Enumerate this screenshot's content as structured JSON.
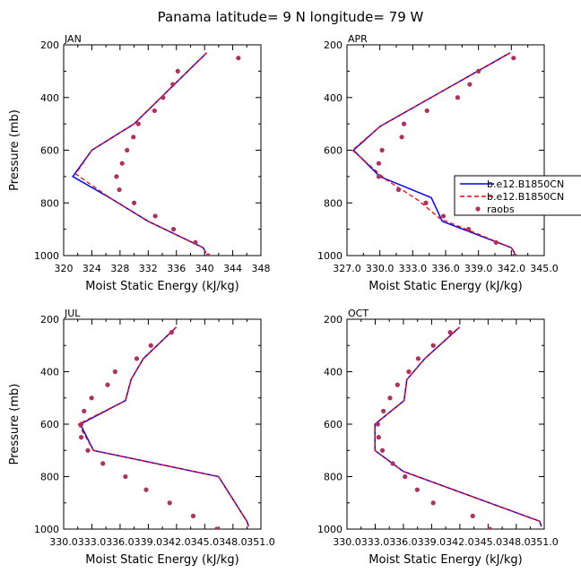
{
  "figure": {
    "title": "Panama  latitude= 9 N longitude= 79 W"
  },
  "legend": {
    "entries": [
      {
        "label": "b.e12.B1850CN",
        "color": "#0000ff",
        "style": "solid"
      },
      {
        "label": "b.e12.B1850CN",
        "color": "#ff0000",
        "style": "dashed"
      },
      {
        "label": "raobs",
        "color": "#b03060",
        "style": "marker"
      }
    ]
  },
  "chart_data": [
    {
      "type": "line",
      "panel": "JAN",
      "xlabel": "Moist Static Energy (kJ/kg)",
      "ylabel": "Pressure (mb)",
      "xlim": [
        320,
        348
      ],
      "ylim": [
        1000,
        200
      ],
      "xticks": [
        320,
        324,
        328,
        332,
        336,
        340,
        344,
        348
      ],
      "xtick_labels": [
        "320",
        "324",
        "328",
        "332",
        "336",
        "340",
        "344",
        "348"
      ],
      "yticks": [
        200,
        400,
        600,
        800,
        1000
      ],
      "ytick_labels": [
        "200",
        "400",
        "600",
        "800",
        "1000"
      ],
      "series": [
        {
          "name": "b.e12.B1850CN",
          "color": "#0000ff",
          "style": "solid",
          "x": [
            340.3,
            330.0,
            324.0,
            321.3,
            326.5,
            332.0,
            339.8,
            340.2
          ],
          "y": [
            230,
            500,
            600,
            700,
            780,
            870,
            970,
            990
          ]
        },
        {
          "name": "b.e12.B1850CN",
          "color": "#ff0000",
          "style": "dashed",
          "x": [
            340.3,
            330.0,
            324.0,
            321.7,
            326.5,
            332.0,
            339.8,
            340.2
          ],
          "y": [
            230,
            500,
            600,
            690,
            780,
            870,
            970,
            990
          ]
        },
        {
          "name": "raobs",
          "color": "#b03060",
          "style": "marker",
          "x": [
            344.8,
            336.2,
            335.5,
            334.1,
            332.9,
            330.6,
            329.9,
            329.0,
            328.3,
            327.5,
            327.9,
            330.0,
            333.0,
            335.6,
            338.7,
            340.5
          ],
          "y": [
            250,
            300,
            350,
            400,
            450,
            500,
            550,
            600,
            650,
            700,
            750,
            800,
            850,
            900,
            950,
            1000
          ]
        }
      ]
    },
    {
      "type": "line",
      "panel": "APR",
      "xlabel": "Moist Static Energy (kJ/kg)",
      "ylabel": "",
      "xlim": [
        327,
        345
      ],
      "ylim": [
        1000,
        200
      ],
      "xticks": [
        327,
        330,
        333,
        336,
        339,
        342,
        345
      ],
      "xtick_labels": [
        "327.0",
        "330.0",
        "333.0",
        "336.0",
        "339.0",
        "342.0",
        "345.0"
      ],
      "yticks": [
        200,
        400,
        600,
        800,
        1000
      ],
      "ytick_labels": [
        "200",
        "400",
        "600",
        "800",
        "1000"
      ],
      "series": [
        {
          "name": "b.e12.B1850CN",
          "color": "#0000ff",
          "style": "solid",
          "x": [
            341.9,
            330.0,
            327.6,
            330.0,
            334.7,
            335.7,
            342.0,
            342.3
          ],
          "y": [
            230,
            510,
            600,
            700,
            780,
            870,
            970,
            990
          ]
        },
        {
          "name": "b.e12.B1850CN",
          "color": "#ff0000",
          "style": "dashed",
          "x": [
            341.9,
            330.0,
            327.5,
            330.5,
            333.5,
            335.5,
            342.0,
            342.3
          ],
          "y": [
            230,
            510,
            600,
            710,
            790,
            860,
            970,
            990
          ]
        },
        {
          "name": "raobs",
          "color": "#b03060",
          "style": "marker",
          "x": [
            342.2,
            339.0,
            338.2,
            337.1,
            334.3,
            332.2,
            332.0,
            330.2,
            329.9,
            329.9,
            331.7,
            334.2,
            335.8,
            338.1,
            340.6,
            342.3
          ],
          "y": [
            250,
            300,
            350,
            400,
            450,
            500,
            550,
            600,
            650,
            700,
            750,
            800,
            850,
            900,
            950,
            1000
          ]
        }
      ]
    },
    {
      "type": "line",
      "panel": "JUL",
      "xlabel": "Moist Static Energy (kJ/kg)",
      "ylabel": "Pressure (mb)",
      "xlim": [
        330.03,
        351.0
      ],
      "ylim": [
        1000,
        200
      ],
      "xticks": [
        330.03,
        333.03,
        336.03,
        339.03,
        342.03,
        345.03,
        348.03,
        351.0
      ],
      "xtick_labels": [
        "330.0",
        "333.0",
        "336.0",
        "339.0",
        "342.0",
        "345.0",
        "348.0",
        "351.0"
      ],
      "yticks": [
        200,
        400,
        600,
        800,
        1000
      ],
      "ytick_labels": [
        "200",
        "400",
        "600",
        "800",
        "1000"
      ],
      "series": [
        {
          "name": "b.e12.B1850CN",
          "color": "#0000ff",
          "style": "solid",
          "x": [
            342.0,
            338.5,
            337.2,
            336.6,
            331.8,
            333.2,
            346.5,
            349.5,
            349.7
          ],
          "y": [
            230,
            350,
            430,
            510,
            600,
            700,
            800,
            970,
            990
          ]
        },
        {
          "name": "b.e12.B1850CN",
          "color": "#ff0000",
          "style": "dashed",
          "x": [
            342.0,
            338.5,
            337.2,
            336.6,
            331.6,
            333.2,
            346.5,
            349.5,
            349.7
          ],
          "y": [
            230,
            350,
            430,
            510,
            600,
            700,
            800,
            970,
            990
          ]
        },
        {
          "name": "raobs",
          "color": "#b03060",
          "style": "marker",
          "x": [
            341.5,
            339.3,
            337.8,
            335.5,
            334.7,
            333.0,
            332.2,
            331.9,
            331.9,
            332.6,
            334.2,
            336.6,
            338.8,
            341.3,
            343.8,
            346.3
          ],
          "y": [
            250,
            300,
            350,
            400,
            450,
            500,
            550,
            600,
            650,
            700,
            750,
            800,
            850,
            900,
            950,
            1000
          ]
        }
      ]
    },
    {
      "type": "line",
      "panel": "OCT",
      "xlabel": "Moist Static Energy (kJ/kg)",
      "ylabel": "",
      "xlim": [
        330.03,
        351.0
      ],
      "ylim": [
        1000,
        200
      ],
      "xticks": [
        330.03,
        333.03,
        336.03,
        339.03,
        342.03,
        345.03,
        348.03,
        351.0
      ],
      "xtick_labels": [
        "330.0",
        "333.0",
        "336.0",
        "339.0",
        "342.0",
        "345.0",
        "348.0",
        "351.0"
      ],
      "yticks": [
        200,
        400,
        600,
        800,
        1000
      ],
      "ytick_labels": [
        "200",
        "400",
        "600",
        "800",
        "1000"
      ],
      "series": [
        {
          "name": "b.e12.B1850CN",
          "color": "#0000ff",
          "style": "solid",
          "x": [
            342.0,
            338.3,
            336.4,
            336.1,
            333.0,
            333.0,
            333.0,
            336.0,
            350.5,
            350.7
          ],
          "y": [
            230,
            350,
            430,
            510,
            600,
            650,
            700,
            780,
            970,
            990
          ]
        },
        {
          "name": "b.e12.B1850CN",
          "color": "#ff0000",
          "style": "dashed",
          "x": [
            342.0,
            338.3,
            336.4,
            336.1,
            333.0,
            333.0,
            333.0,
            336.0,
            350.5,
            350.7
          ],
          "y": [
            230,
            350,
            430,
            510,
            600,
            650,
            700,
            780,
            970,
            990
          ]
        },
        {
          "name": "raobs",
          "color": "#b03060",
          "style": "marker",
          "x": [
            341.0,
            339.2,
            337.6,
            336.6,
            335.4,
            334.6,
            333.9,
            333.3,
            333.4,
            333.8,
            334.9,
            336.2,
            337.5,
            339.2,
            343.4,
            345.2
          ],
          "y": [
            250,
            300,
            350,
            400,
            450,
            500,
            550,
            600,
            650,
            700,
            750,
            800,
            850,
            900,
            950,
            1000
          ]
        }
      ]
    }
  ]
}
